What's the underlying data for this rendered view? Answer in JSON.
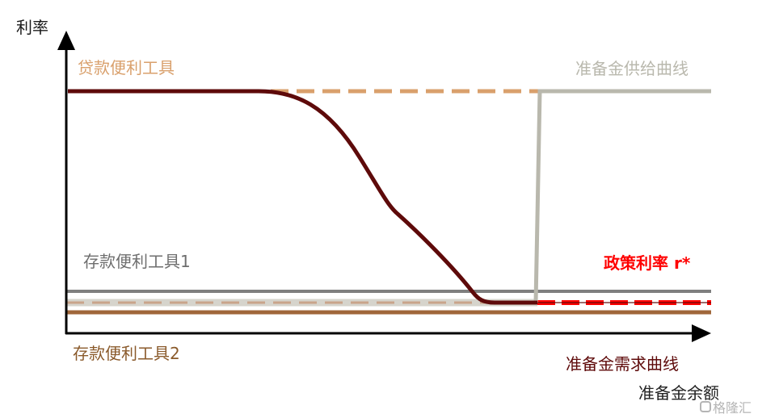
{
  "axes": {
    "y_label": "利率",
    "x_label": "准备金余额"
  },
  "labels": {
    "loan_facility": "贷款便利工具",
    "supply_curve": "准备金供给曲线",
    "deposit_facility_1": "存款便利工具1",
    "policy_rate": "政策利率 r*",
    "deposit_facility_2": "存款便利工具2",
    "demand_curve": "准备金需求曲线"
  },
  "watermark": "格隆汇",
  "colors": {
    "loan_facility": "#d9a06c",
    "supply_curve": "#b9b8ad",
    "deposit_facility_1": "#7f7f7f",
    "policy_rate": "#ff0000",
    "deposit_facility_2": "#a0673a",
    "demand_curve": "#5e0a0a",
    "axis": "#000000",
    "dep1_label": "#6e6e6e",
    "dep2_label": "#8a5a2b",
    "x_label": "#222222"
  }
}
